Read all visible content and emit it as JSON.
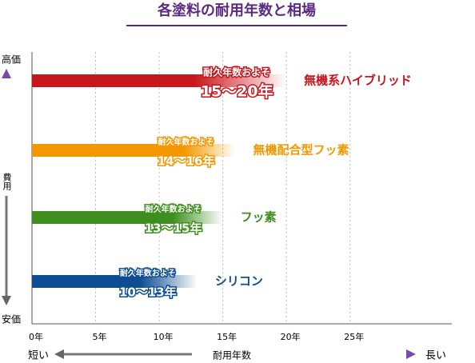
{
  "chart_data": {
    "type": "range-bar",
    "title": "各塗料の耐用年数と相場",
    "y_top_label": "高価",
    "y_axis_label": "費用",
    "y_bottom_label": "安価",
    "x_left_label": "短い",
    "x_axis_label": "耐用年数",
    "x_right_label": "長い",
    "annotation": "耐久年数およそ",
    "xlim": [
      0,
      33
    ],
    "xticks": [
      {
        "value": 0,
        "label": "0年"
      },
      {
        "value": 5,
        "label": "5年"
      },
      {
        "value": 10,
        "label": "10年"
      },
      {
        "value": 15,
        "label": "15年"
      },
      {
        "value": 20,
        "label": "20年"
      },
      {
        "value": 25,
        "label": "25年"
      }
    ],
    "grid": true,
    "bars": [
      {
        "name": "無機系ハイブリッド",
        "color": "#c8161d",
        "low": 15,
        "high": 20,
        "label": "15〜20年"
      },
      {
        "name": "無機配合型フッ素",
        "color": "#f39800",
        "low": 14,
        "high": 16,
        "label": "14〜16年"
      },
      {
        "name": "フッ素",
        "color": "#3e8e1f",
        "low": 13,
        "high": 15,
        "label": "13〜15年"
      },
      {
        "name": "シリコン",
        "color": "#0d4d91",
        "low": 10,
        "high": 13,
        "label": "10〜13年"
      }
    ]
  }
}
